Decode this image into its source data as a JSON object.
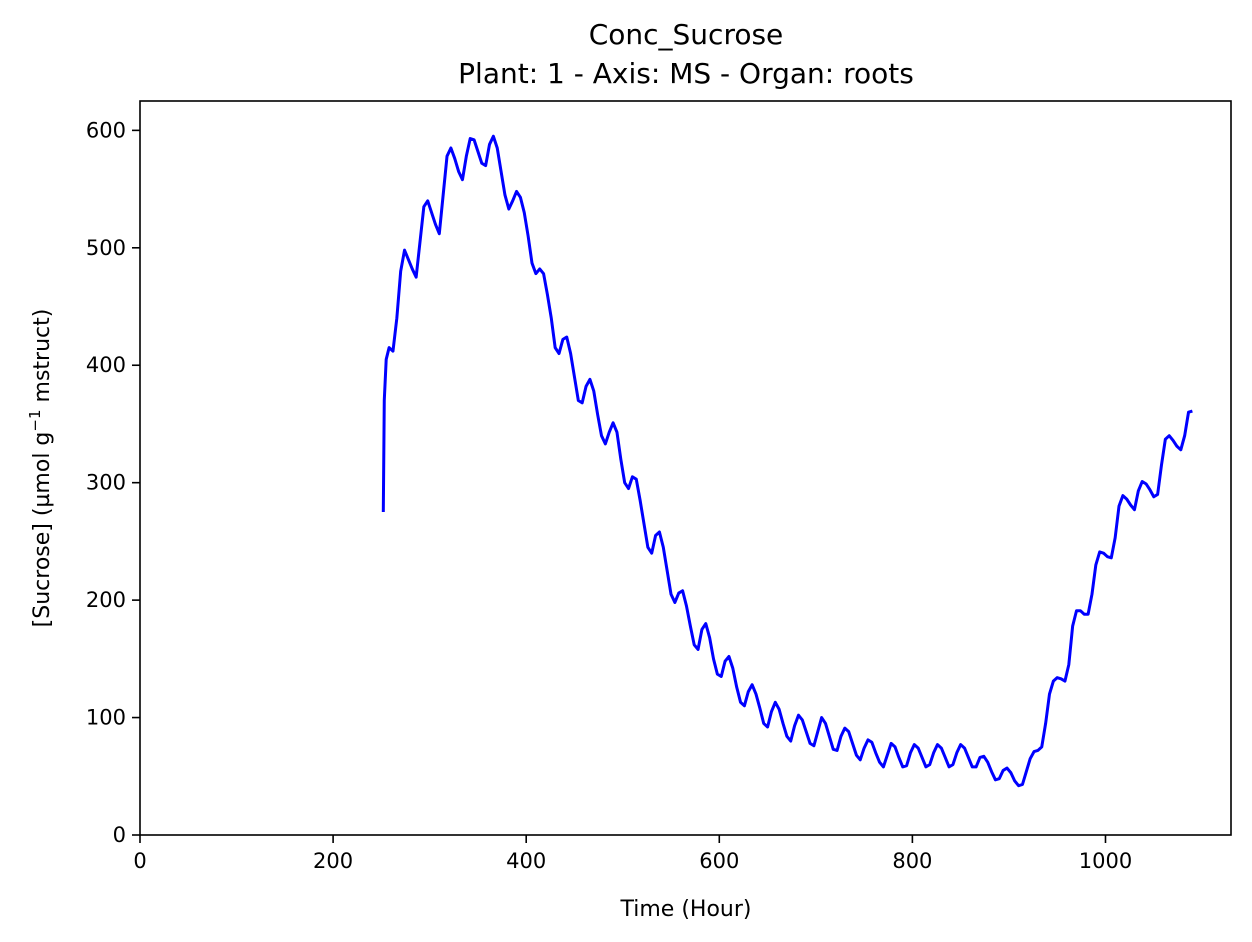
{
  "chart_data": {
    "type": "line",
    "title": "Conc_Sucrose",
    "subtitle": "Plant: 1 - Axis: MS - Organ: roots",
    "xlabel": "Time (Hour)",
    "ylabel_parts": [
      "[Sucrose] (µmol g",
      "−1",
      " mstruct)"
    ],
    "xlim": [
      0,
      1130
    ],
    "ylim": [
      0,
      625
    ],
    "xticks": [
      0,
      200,
      400,
      600,
      800,
      1000
    ],
    "yticks": [
      0,
      100,
      200,
      300,
      400,
      500,
      600
    ],
    "grid": false,
    "color": "#0000ff",
    "series": [
      {
        "points": [
          [
            252,
            275
          ],
          [
            253,
            370
          ],
          [
            255,
            405
          ],
          [
            258,
            415
          ],
          [
            262,
            412
          ],
          [
            266,
            440
          ],
          [
            270,
            480
          ],
          [
            274,
            498
          ],
          [
            278,
            490
          ],
          [
            282,
            482
          ],
          [
            286,
            475
          ],
          [
            290,
            505
          ],
          [
            294,
            535
          ],
          [
            298,
            540
          ],
          [
            302,
            530
          ],
          [
            306,
            520
          ],
          [
            310,
            512
          ],
          [
            314,
            545
          ],
          [
            318,
            578
          ],
          [
            322,
            585
          ],
          [
            326,
            576
          ],
          [
            330,
            565
          ],
          [
            334,
            558
          ],
          [
            338,
            578
          ],
          [
            342,
            593
          ],
          [
            346,
            592
          ],
          [
            350,
            582
          ],
          [
            354,
            572
          ],
          [
            358,
            570
          ],
          [
            362,
            588
          ],
          [
            366,
            595
          ],
          [
            370,
            585
          ],
          [
            374,
            565
          ],
          [
            378,
            545
          ],
          [
            382,
            533
          ],
          [
            386,
            540
          ],
          [
            390,
            548
          ],
          [
            394,
            543
          ],
          [
            398,
            530
          ],
          [
            402,
            510
          ],
          [
            406,
            487
          ],
          [
            410,
            478
          ],
          [
            414,
            482
          ],
          [
            418,
            478
          ],
          [
            422,
            460
          ],
          [
            426,
            440
          ],
          [
            430,
            415
          ],
          [
            434,
            410
          ],
          [
            438,
            422
          ],
          [
            442,
            424
          ],
          [
            446,
            410
          ],
          [
            450,
            390
          ],
          [
            454,
            370
          ],
          [
            458,
            368
          ],
          [
            462,
            382
          ],
          [
            466,
            388
          ],
          [
            470,
            378
          ],
          [
            474,
            358
          ],
          [
            478,
            340
          ],
          [
            482,
            333
          ],
          [
            486,
            343
          ],
          [
            490,
            351
          ],
          [
            494,
            343
          ],
          [
            498,
            320
          ],
          [
            502,
            300
          ],
          [
            506,
            295
          ],
          [
            510,
            305
          ],
          [
            514,
            303
          ],
          [
            518,
            285
          ],
          [
            522,
            265
          ],
          [
            526,
            245
          ],
          [
            530,
            240
          ],
          [
            534,
            255
          ],
          [
            538,
            258
          ],
          [
            542,
            245
          ],
          [
            546,
            225
          ],
          [
            550,
            205
          ],
          [
            554,
            198
          ],
          [
            558,
            206
          ],
          [
            562,
            208
          ],
          [
            566,
            195
          ],
          [
            570,
            178
          ],
          [
            574,
            162
          ],
          [
            578,
            158
          ],
          [
            582,
            175
          ],
          [
            586,
            180
          ],
          [
            590,
            168
          ],
          [
            594,
            150
          ],
          [
            598,
            137
          ],
          [
            602,
            135
          ],
          [
            606,
            148
          ],
          [
            610,
            152
          ],
          [
            614,
            142
          ],
          [
            618,
            126
          ],
          [
            622,
            113
          ],
          [
            626,
            110
          ],
          [
            630,
            122
          ],
          [
            634,
            128
          ],
          [
            638,
            120
          ],
          [
            642,
            108
          ],
          [
            646,
            95
          ],
          [
            650,
            92
          ],
          [
            654,
            105
          ],
          [
            658,
            113
          ],
          [
            662,
            107
          ],
          [
            666,
            95
          ],
          [
            670,
            84
          ],
          [
            674,
            80
          ],
          [
            678,
            93
          ],
          [
            682,
            102
          ],
          [
            686,
            98
          ],
          [
            690,
            88
          ],
          [
            694,
            78
          ],
          [
            698,
            76
          ],
          [
            702,
            88
          ],
          [
            706,
            100
          ],
          [
            710,
            95
          ],
          [
            714,
            84
          ],
          [
            718,
            73
          ],
          [
            722,
            72
          ],
          [
            726,
            84
          ],
          [
            730,
            91
          ],
          [
            734,
            88
          ],
          [
            738,
            78
          ],
          [
            742,
            68
          ],
          [
            746,
            64
          ],
          [
            750,
            74
          ],
          [
            754,
            81
          ],
          [
            758,
            79
          ],
          [
            762,
            70
          ],
          [
            766,
            62
          ],
          [
            770,
            58
          ],
          [
            774,
            68
          ],
          [
            778,
            78
          ],
          [
            782,
            75
          ],
          [
            786,
            66
          ],
          [
            790,
            58
          ],
          [
            794,
            59
          ],
          [
            798,
            70
          ],
          [
            802,
            77
          ],
          [
            806,
            74
          ],
          [
            810,
            66
          ],
          [
            814,
            58
          ],
          [
            818,
            60
          ],
          [
            822,
            70
          ],
          [
            826,
            77
          ],
          [
            830,
            74
          ],
          [
            834,
            66
          ],
          [
            838,
            58
          ],
          [
            842,
            60
          ],
          [
            846,
            70
          ],
          [
            850,
            77
          ],
          [
            854,
            74
          ],
          [
            858,
            66
          ],
          [
            862,
            58
          ],
          [
            866,
            58
          ],
          [
            870,
            66
          ],
          [
            874,
            67
          ],
          [
            878,
            62
          ],
          [
            882,
            54
          ],
          [
            886,
            47
          ],
          [
            890,
            48
          ],
          [
            894,
            55
          ],
          [
            898,
            57
          ],
          [
            902,
            53
          ],
          [
            906,
            46
          ],
          [
            910,
            42
          ],
          [
            914,
            43
          ],
          [
            918,
            54
          ],
          [
            922,
            65
          ],
          [
            926,
            71
          ],
          [
            930,
            72
          ],
          [
            934,
            75
          ],
          [
            938,
            95
          ],
          [
            942,
            120
          ],
          [
            946,
            131
          ],
          [
            950,
            134
          ],
          [
            954,
            133
          ],
          [
            958,
            131
          ],
          [
            962,
            145
          ],
          [
            966,
            178
          ],
          [
            970,
            191
          ],
          [
            974,
            191
          ],
          [
            978,
            188
          ],
          [
            982,
            188
          ],
          [
            986,
            205
          ],
          [
            990,
            230
          ],
          [
            994,
            241
          ],
          [
            998,
            240
          ],
          [
            1002,
            237
          ],
          [
            1006,
            236
          ],
          [
            1010,
            253
          ],
          [
            1014,
            280
          ],
          [
            1018,
            289
          ],
          [
            1022,
            286
          ],
          [
            1026,
            281
          ],
          [
            1030,
            277
          ],
          [
            1034,
            293
          ],
          [
            1038,
            301
          ],
          [
            1042,
            299
          ],
          [
            1046,
            294
          ],
          [
            1050,
            288
          ],
          [
            1054,
            290
          ],
          [
            1058,
            315
          ],
          [
            1062,
            337
          ],
          [
            1066,
            340
          ],
          [
            1070,
            336
          ],
          [
            1074,
            331
          ],
          [
            1078,
            328
          ],
          [
            1082,
            340
          ],
          [
            1086,
            360
          ],
          [
            1090,
            361
          ]
        ]
      }
    ]
  }
}
